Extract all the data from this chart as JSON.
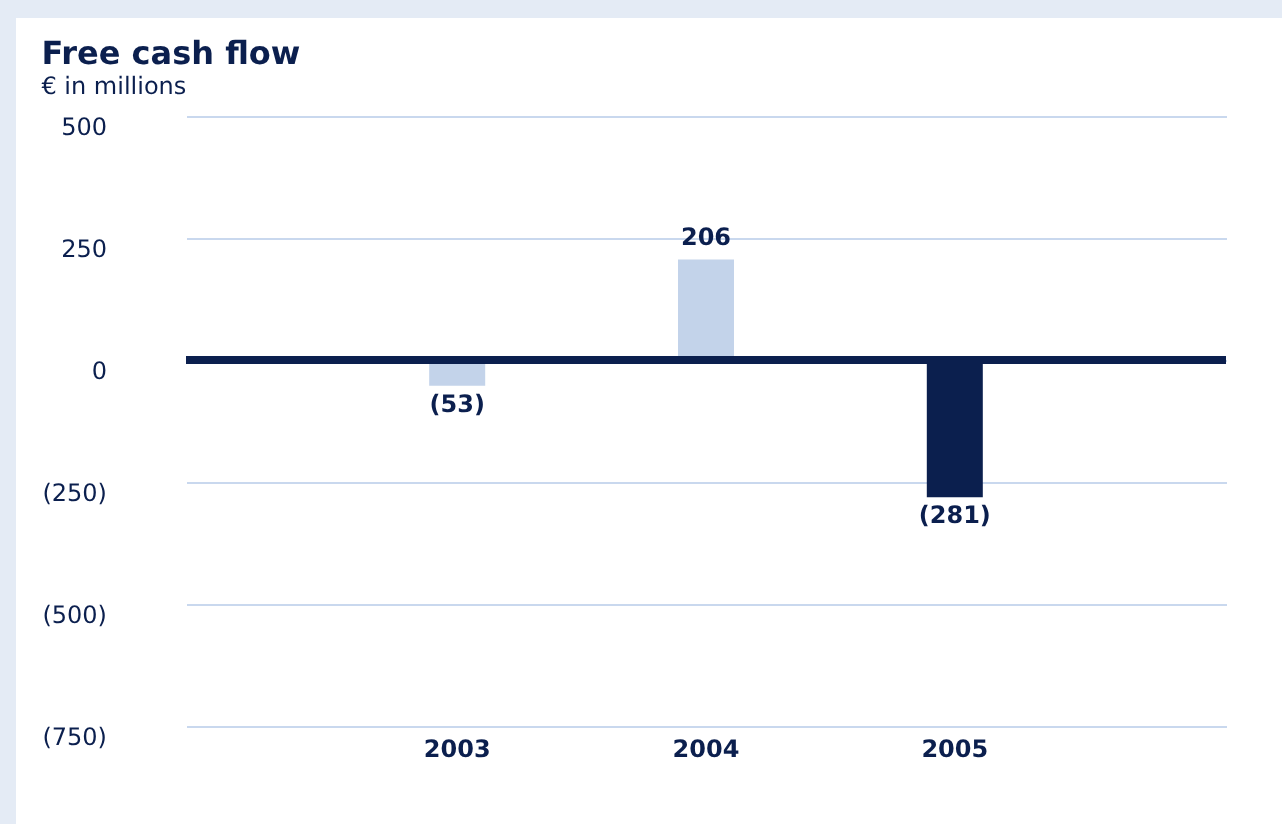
{
  "chart_data": {
    "type": "bar",
    "title": "Free cash flow",
    "subtitle": "€ in millions",
    "categories": [
      "2003",
      "2004",
      "2005"
    ],
    "values": [
      -53,
      206,
      -281
    ],
    "colors": [
      "#c3d3ea",
      "#c3d3ea",
      "#0b1f4e"
    ],
    "value_labels": [
      "(53)",
      "206",
      "(281)"
    ],
    "ylim": [
      -750,
      500
    ],
    "yticks": [
      {
        "value": -750,
        "label": "(750)"
      },
      {
        "value": -500,
        "label": "(500)"
      },
      {
        "value": -250,
        "label": "(250)"
      },
      0,
      250,
      500
    ],
    "ref_lines": [
      {
        "axis": "y",
        "value": 0,
        "color": "#0b1f4e"
      }
    ],
    "grid": "y"
  }
}
